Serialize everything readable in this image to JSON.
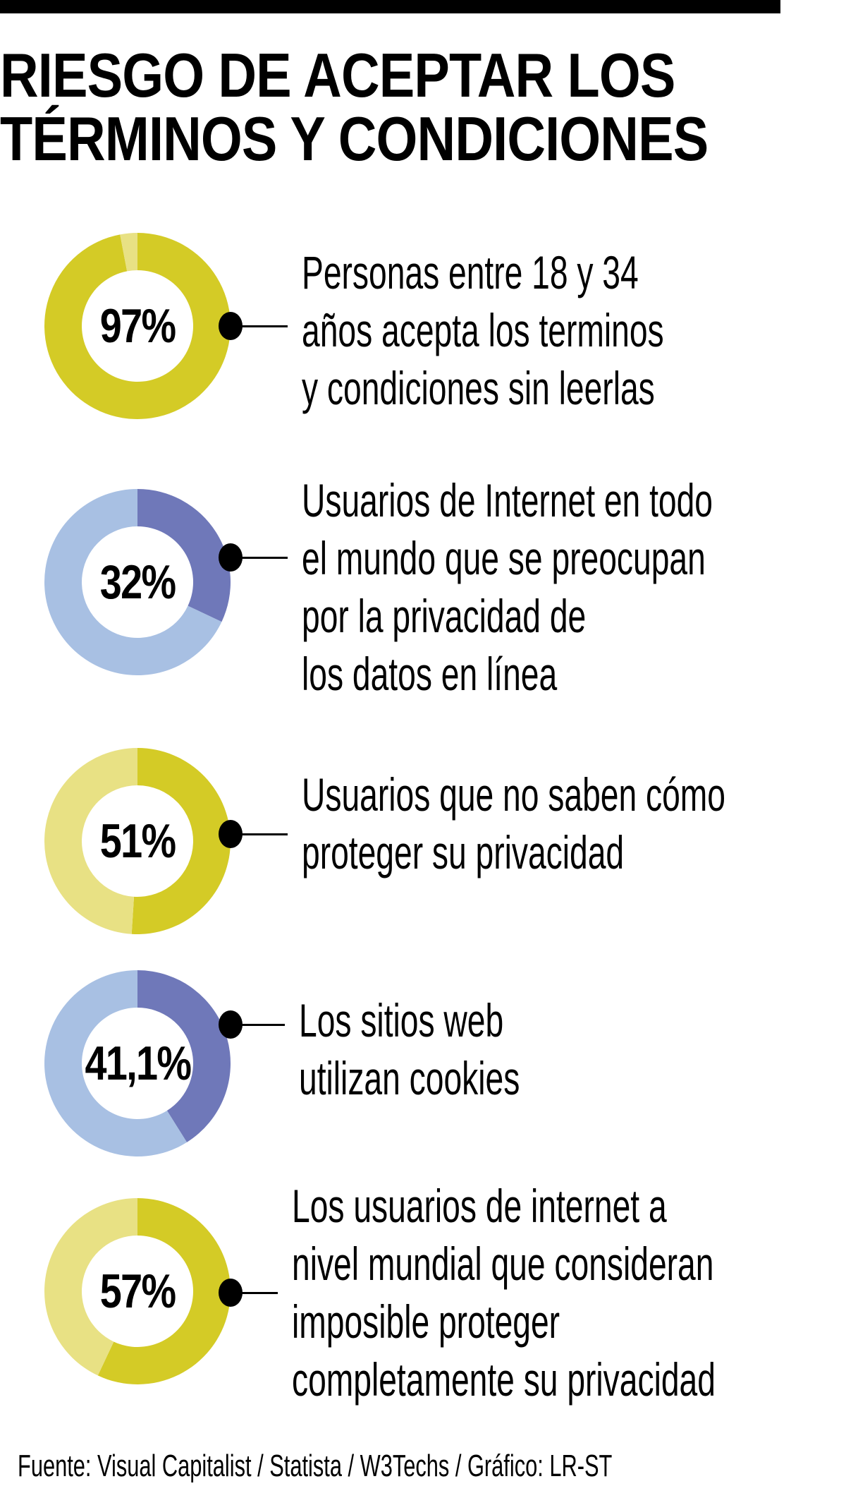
{
  "header": {
    "title_lines": [
      "RIESGO DE ACEPTAR LOS",
      "TÉRMINOS Y CONDICIONES"
    ]
  },
  "colors": {
    "yellow_dark": "#D4CB26",
    "yellow_light": "#E8E184",
    "blue_dark": "#6F78B9",
    "blue_light": "#A8C0E3",
    "text": "#000000"
  },
  "items": [
    {
      "value_label": "97%",
      "value": 97,
      "palette": "yellow",
      "lines": [
        "Personas entre 18 y 34",
        "años acepta los terminos",
        "y condiciones sin leerlas"
      ]
    },
    {
      "value_label": "32%",
      "value": 32,
      "palette": "blue",
      "lines": [
        "Usuarios de Internet en todo",
        "el mundo que se preocupan",
        "por la privacidad de",
        "los datos en línea"
      ]
    },
    {
      "value_label": "51%",
      "value": 51,
      "palette": "yellow",
      "lines": [
        "Usuarios que no saben cómo",
        "proteger su privacidad"
      ]
    },
    {
      "value_label": "41,1%",
      "value": 41.1,
      "palette": "blue",
      "lines": [
        "Los sitios web",
        "utilizan cookies"
      ]
    },
    {
      "value_label": "57%",
      "value": 57,
      "palette": "yellow",
      "lines": [
        "Los usuarios de internet a",
        "nivel mundial que consideran",
        "imposible proteger",
        "completamente su privacidad"
      ]
    }
  ],
  "footer": {
    "source": "Fuente: Visual Capitalist / Statista / W3Techs / Gráfico: LR-ST"
  },
  "chart_data": {
    "type": "pie",
    "subtype": "donut",
    "title": "RIESGO DE ACEPTAR LOS TÉRMINOS Y CONDICIONES",
    "categories": [
      "Personas entre 18 y 34 años acepta los terminos y condiciones sin leerlas",
      "Usuarios de Internet en todo el mundo que se preocupan por la privacidad de los datos en línea",
      "Usuarios que no saben cómo proteger su privacidad",
      "Los sitios web utilizan cookies",
      "Los usuarios de internet a nivel mundial que consideran imposible proteger completamente su privacidad"
    ],
    "values": [
      97,
      32,
      51,
      41.1,
      57
    ],
    "unit": "%",
    "source": "Fuente: Visual Capitalist / Statista / W3Techs / Gráfico: LR-ST"
  }
}
